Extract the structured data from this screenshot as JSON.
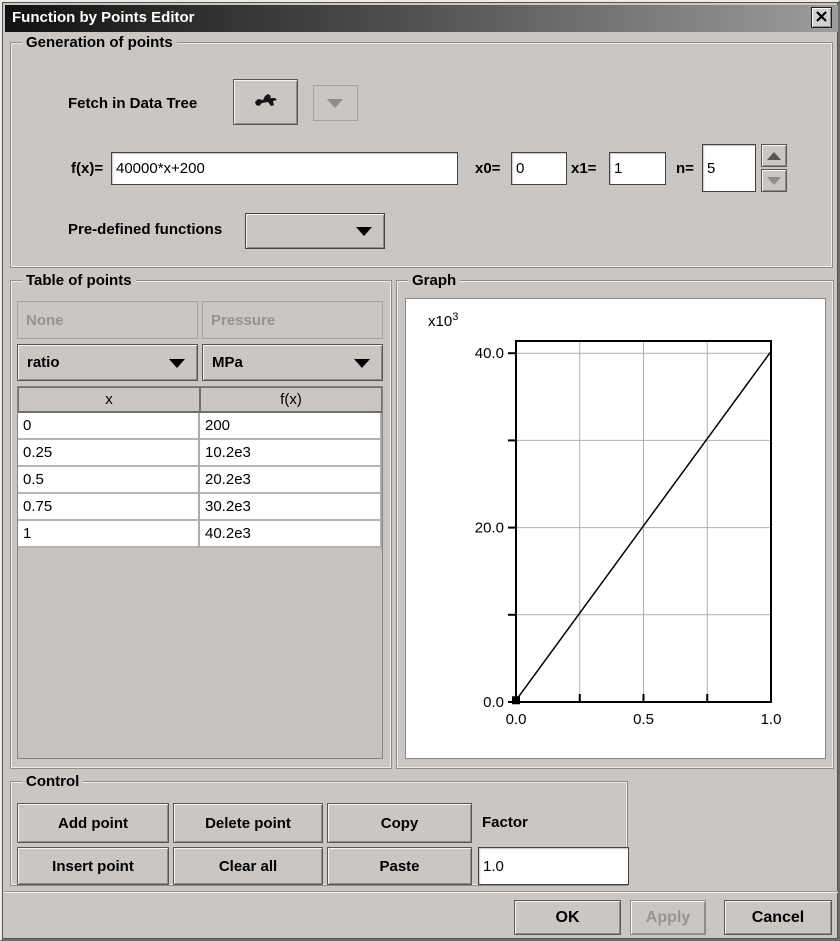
{
  "window": {
    "title": "Function by Points Editor"
  },
  "icons": {
    "close": "x-cross",
    "fetch": "grab-hand-animal",
    "combo_arrow": "triangle-down",
    "spinner_up": "triangle-up",
    "spinner_down": "triangle-down"
  },
  "generation": {
    "group_label": "Generation of points",
    "fetch_label": "Fetch in Data Tree",
    "fx_label": "f(x)=",
    "fx_value": "40000*x+200",
    "x0_label": "x0=",
    "x0_value": "0",
    "x1_label": "x1=",
    "x1_value": "1",
    "n_label": "n=",
    "n_value": "5",
    "predefined_label": "Pre-defined functions",
    "predefined_value": ""
  },
  "table": {
    "group_label": "Table of points",
    "quantity_headers": [
      "None",
      "Pressure"
    ],
    "unit_selectors": [
      "ratio",
      "MPa"
    ],
    "columns": [
      "x",
      "f(x)"
    ],
    "rows": [
      [
        "0",
        "200"
      ],
      [
        "0.25",
        "10.2e3"
      ],
      [
        "0.5",
        "20.2e3"
      ],
      [
        "0.75",
        "30.2e3"
      ],
      [
        "1",
        "40.2e3"
      ]
    ]
  },
  "graph": {
    "group_label": "Graph",
    "scale_base": "x10",
    "scale_exp": "3"
  },
  "chart_data": {
    "type": "line",
    "title": "Graph",
    "x": [
      0,
      0.25,
      0.5,
      0.75,
      1
    ],
    "y": [
      200,
      10200,
      20200,
      30200,
      40200
    ],
    "scale_note": "y axis labeled in thousands (x10^3)",
    "xlabel": "",
    "ylabel": "",
    "xlim": [
      0,
      1
    ],
    "ylim": [
      0,
      41400
    ],
    "x_ticks": [
      0,
      0.25,
      0.5,
      0.75,
      1
    ],
    "x_tick_labels": [
      "0.0",
      "",
      "0.5",
      "",
      "1.0"
    ],
    "y_ticks": [
      0,
      10000,
      20000,
      30000,
      40000
    ],
    "y_tick_labels": [
      "0.0",
      "",
      "20.0",
      "",
      "40.0"
    ],
    "grid": true,
    "legend": false,
    "marker_at_first_point": true
  },
  "control": {
    "group_label": "Control",
    "buttons": [
      "Add point",
      "Delete point",
      "Copy",
      "Insert point",
      "Clear all",
      "Paste"
    ],
    "factor_label": "Factor",
    "factor_value": "1.0"
  },
  "footer": {
    "ok": "OK",
    "apply": "Apply",
    "cancel": "Cancel"
  }
}
